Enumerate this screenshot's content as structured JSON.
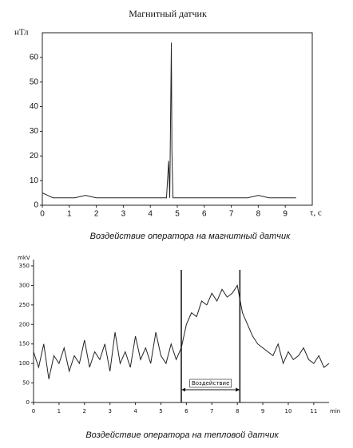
{
  "chart_data": [
    {
      "type": "line",
      "title": "Магнитный датчик",
      "y_label": "нТл",
      "x_label": "τ, с",
      "caption": "Воздействие оператора на магнитный датчик",
      "x": [
        0,
        0.4,
        0.8,
        1.2,
        1.6,
        2.0,
        2.4,
        2.8,
        3.2,
        3.6,
        4.0,
        4.4,
        4.6,
        4.68,
        4.72,
        4.78,
        4.8,
        4.84,
        5.2,
        5.6,
        6.0,
        6.4,
        6.8,
        7.2,
        7.6,
        8.0,
        8.4,
        8.8,
        9.2,
        9.4
      ],
      "series": [
        {
          "color": "#222222",
          "values": [
            5,
            3,
            3,
            3,
            4,
            3,
            3,
            3,
            3,
            3,
            3,
            3,
            3,
            18,
            3,
            66,
            22,
            3,
            3,
            3,
            3,
            3,
            3,
            3,
            3,
            4,
            3,
            3,
            3,
            3
          ]
        }
      ],
      "xlim": [
        0,
        10
      ],
      "xticks": [
        0,
        1,
        2,
        3,
        4,
        5,
        6,
        7,
        8,
        9
      ],
      "ylim": [
        0,
        70
      ],
      "yticks": [
        0,
        10,
        20,
        30,
        40,
        50,
        60
      ]
    },
    {
      "type": "line",
      "y_label": "mkV",
      "x_label": "min",
      "caption": "Воздействие оператора на тепловой датчик",
      "annotation": {
        "text": "Воздействие",
        "x": [
          5.8,
          8.1
        ]
      },
      "x": [
        0,
        0.2,
        0.4,
        0.6,
        0.8,
        1.0,
        1.2,
        1.4,
        1.6,
        1.8,
        2.0,
        2.2,
        2.4,
        2.6,
        2.8,
        3.0,
        3.2,
        3.4,
        3.6,
        3.8,
        4.0,
        4.2,
        4.4,
        4.6,
        4.8,
        5.0,
        5.2,
        5.4,
        5.6,
        5.8,
        6.0,
        6.2,
        6.4,
        6.6,
        6.8,
        7.0,
        7.2,
        7.4,
        7.6,
        7.8,
        8.0,
        8.2,
        8.4,
        8.6,
        8.8,
        9.0,
        9.2,
        9.4,
        9.6,
        9.8,
        10.0,
        10.2,
        10.4,
        10.6,
        10.8,
        11.0,
        11.2,
        11.4,
        11.6
      ],
      "series": [
        {
          "color": "#222222",
          "values": [
            130,
            90,
            150,
            60,
            120,
            100,
            140,
            80,
            120,
            100,
            160,
            90,
            130,
            110,
            150,
            80,
            180,
            100,
            130,
            90,
            170,
            110,
            140,
            100,
            180,
            120,
            100,
            150,
            110,
            140,
            200,
            230,
            220,
            260,
            250,
            280,
            260,
            290,
            270,
            280,
            300,
            230,
            200,
            170,
            150,
            140,
            130,
            120,
            150,
            100,
            130,
            110,
            120,
            140,
            110,
            100,
            120,
            90,
            100
          ]
        }
      ],
      "xlim": [
        0,
        11.6
      ],
      "xticks": [
        0,
        1,
        2,
        3,
        4,
        5,
        6,
        7,
        8,
        9,
        10,
        11
      ],
      "ylim": [
        0,
        350
      ],
      "yticks": [
        0,
        50,
        100,
        150,
        200,
        250,
        300,
        350
      ]
    }
  ]
}
